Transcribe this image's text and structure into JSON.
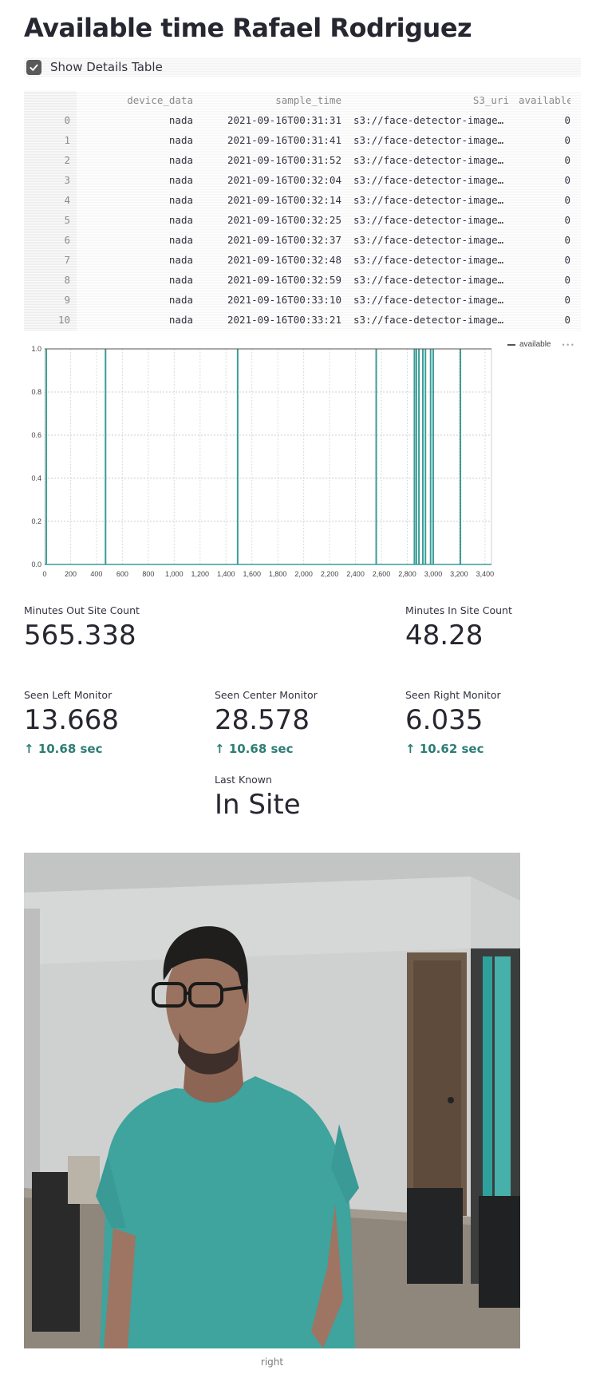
{
  "page": {
    "title": "Available time Rafael Rodriguez"
  },
  "details_checkbox": {
    "label": "Show Details Table",
    "checked": true
  },
  "table": {
    "columns": [
      "",
      "device_data",
      "sample_time",
      "S3_uri",
      "available"
    ],
    "rows": [
      [
        "0",
        "nada",
        "2021-09-16T00:31:31",
        "s3://face-detector-image…",
        "0"
      ],
      [
        "1",
        "nada",
        "2021-09-16T00:31:41",
        "s3://face-detector-image…",
        "0"
      ],
      [
        "2",
        "nada",
        "2021-09-16T00:31:52",
        "s3://face-detector-image…",
        "0"
      ],
      [
        "3",
        "nada",
        "2021-09-16T00:32:04",
        "s3://face-detector-image…",
        "0"
      ],
      [
        "4",
        "nada",
        "2021-09-16T00:32:14",
        "s3://face-detector-image…",
        "0"
      ],
      [
        "5",
        "nada",
        "2021-09-16T00:32:25",
        "s3://face-detector-image…",
        "0"
      ],
      [
        "6",
        "nada",
        "2021-09-16T00:32:37",
        "s3://face-detector-image…",
        "0"
      ],
      [
        "7",
        "nada",
        "2021-09-16T00:32:48",
        "s3://face-detector-image…",
        "0"
      ],
      [
        "8",
        "nada",
        "2021-09-16T00:32:59",
        "s3://face-detector-image…",
        "0"
      ],
      [
        "9",
        "nada",
        "2021-09-16T00:33:10",
        "s3://face-detector-image…",
        "0"
      ],
      [
        "10",
        "nada",
        "2021-09-16T00:33:21",
        "s3://face-detector-image…",
        "0"
      ]
    ]
  },
  "chart_data": {
    "type": "line",
    "title": "",
    "xlabel": "",
    "ylabel": "",
    "legend_position": "top-right",
    "xlim": [
      0,
      3450
    ],
    "ylim": [
      0,
      1
    ],
    "grid": true,
    "x_ticks": [
      "0",
      "200",
      "400",
      "600",
      "800",
      "1,000",
      "1,200",
      "1,400",
      "1,600",
      "1,800",
      "2,000",
      "2,200",
      "2,400",
      "2,600",
      "2,800",
      "3,000",
      "3,200",
      "3,400"
    ],
    "y_ticks": [
      "0.0",
      "0.2",
      "0.4",
      "0.6",
      "0.8",
      "1.0"
    ],
    "series": [
      {
        "name": "available",
        "color": "#3a9c97",
        "spikes_at_x": [
          12,
          470,
          1490,
          2560,
          2855,
          2870,
          2890,
          2920,
          2940,
          2980,
          3000,
          3210
        ]
      }
    ]
  },
  "metrics": {
    "minutes_out": {
      "label": "Minutes Out Site Count",
      "value": "565.338"
    },
    "minutes_in": {
      "label": "Minutes In Site Count",
      "value": "48.28"
    },
    "seen_left": {
      "label": "Seen Left Monitor",
      "value": "13.668",
      "delta": "10.68 sec"
    },
    "seen_center": {
      "label": "Seen Center Monitor",
      "value": "28.578",
      "delta": "10.68 sec"
    },
    "seen_right": {
      "label": "Seen Right Monitor",
      "value": "6.035",
      "delta": "10.62 sec"
    },
    "last_known": {
      "label": "Last Known",
      "value": "In Site"
    }
  },
  "image": {
    "caption": "right"
  },
  "colors": {
    "accent": "#3a9c97",
    "delta_up": "#2e7d74",
    "text": "#262730"
  }
}
